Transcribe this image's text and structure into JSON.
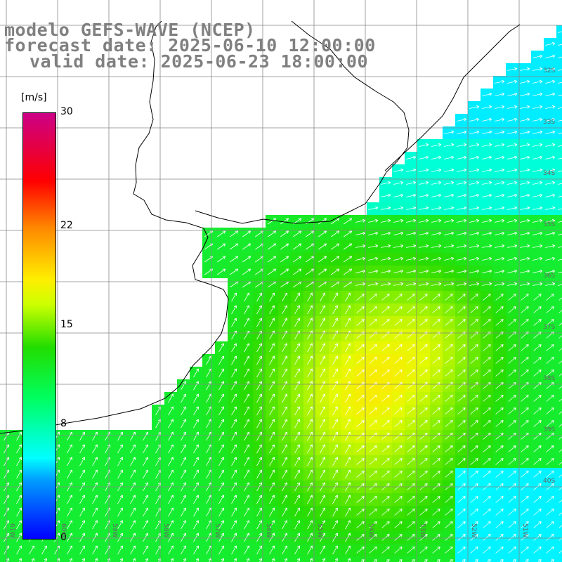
{
  "title": {
    "model": "modelo GEFS-WAVE (NCEP)",
    "forecast": "forecast date: 2025-06-10 12:00:00",
    "valid": "valid date: 2025-06-23 18:00:00"
  },
  "colorbar": {
    "unit": "[m/s]",
    "ticks": [
      {
        "label": "30",
        "value": 30
      },
      {
        "label": "22",
        "value": 22
      },
      {
        "label": "15",
        "value": 15
      },
      {
        "label": "8",
        "value": 8
      },
      {
        "label": "0",
        "value": 0
      }
    ]
  },
  "lat_labels": [
    "32S",
    "33S",
    "34S",
    "35S",
    "36S",
    "37S",
    "38S",
    "39S",
    "40S"
  ],
  "lon_labels": [
    "61W",
    "60W",
    "59W",
    "58W",
    "57W",
    "56W",
    "55W",
    "54W",
    "53W",
    "52W",
    "51W"
  ],
  "colors": {
    "land": "#ffffff",
    "coast": "#000000",
    "grid": "#888888",
    "arrow": "#ffffff"
  }
}
